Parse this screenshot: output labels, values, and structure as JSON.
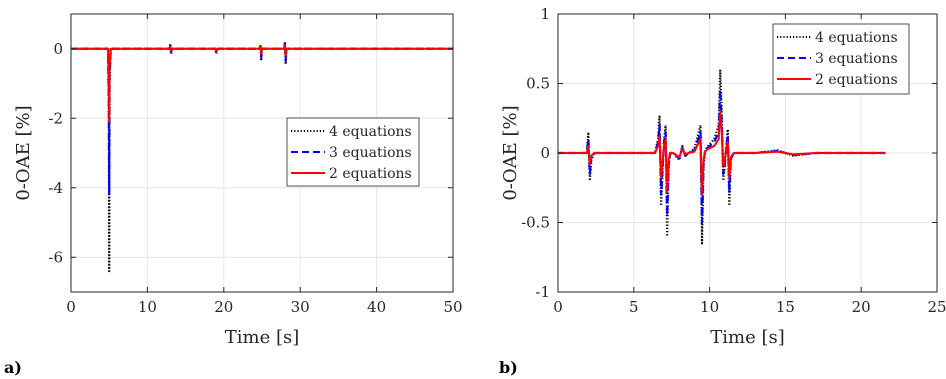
{
  "colors": {
    "series_4eq": "#000000",
    "series_3eq": "#0000ff",
    "series_2eq": "#ff0000",
    "grid": "#e6e6e6",
    "axis": "#262626"
  },
  "chart_data": [
    {
      "panel_label": "a)",
      "type": "line",
      "xlabel": "Time [s]",
      "ylabel": "0-OAE [%]",
      "xlim": [
        0,
        50
      ],
      "ylim": [
        -7,
        1
      ],
      "xticks": [
        0,
        10,
        20,
        30,
        40,
        50
      ],
      "yticks": [
        0,
        -2,
        -4,
        -6
      ],
      "ytick_labels": [
        "0",
        "-2",
        "-4",
        "-6"
      ],
      "grid": true,
      "legend_position": "center-right",
      "series": [
        {
          "name": "4 equations",
          "style": "dotted",
          "color": "#000000",
          "x": [
            0,
            4.85,
            4.95,
            5.0,
            5.05,
            5.2,
            12.9,
            13.0,
            13.1,
            13.2,
            18.9,
            19.0,
            19.2,
            24.7,
            24.8,
            24.9,
            25.0,
            27.9,
            28.0,
            28.1,
            28.2,
            35,
            50
          ],
          "y": [
            0,
            0,
            -2.0,
            -6.4,
            -1.0,
            0,
            0,
            0.15,
            -0.15,
            0,
            0,
            -0.15,
            0,
            0,
            0.1,
            -0.35,
            0,
            0,
            0.2,
            -0.45,
            0,
            0,
            0
          ]
        },
        {
          "name": "3 equations",
          "style": "dashed",
          "color": "#0000ff",
          "x": [
            0,
            4.85,
            4.95,
            5.0,
            5.05,
            5.2,
            12.9,
            13.0,
            13.1,
            13.2,
            18.9,
            19.0,
            19.2,
            24.7,
            24.8,
            24.9,
            25.0,
            27.9,
            28.0,
            28.1,
            28.2,
            35,
            50
          ],
          "y": [
            0,
            0,
            -1.5,
            -4.2,
            -0.8,
            0,
            0,
            0.1,
            -0.1,
            0,
            0,
            -0.1,
            0,
            0,
            0.08,
            -0.25,
            0,
            0,
            0.15,
            -0.35,
            0,
            0,
            0
          ]
        },
        {
          "name": "2 equations",
          "style": "solid",
          "color": "#ff0000",
          "x": [
            0,
            4.85,
            4.95,
            5.0,
            5.05,
            5.2,
            12.9,
            13.0,
            13.1,
            13.2,
            18.9,
            19.0,
            19.2,
            24.7,
            24.8,
            24.9,
            25.0,
            27.9,
            28.0,
            28.1,
            28.2,
            35,
            50
          ],
          "y": [
            0,
            0,
            -1.0,
            -2.1,
            -0.5,
            0,
            0,
            0.06,
            -0.06,
            0,
            0,
            -0.08,
            0,
            0,
            0.05,
            -0.15,
            0,
            0,
            0.1,
            -0.2,
            0,
            0,
            0
          ]
        }
      ]
    },
    {
      "panel_label": "b)",
      "type": "line",
      "xlabel": "Time [s]",
      "ylabel": "0-OAE [%]",
      "xlim": [
        0,
        25
      ],
      "ylim": [
        -1,
        1
      ],
      "xticks": [
        0,
        5,
        10,
        15,
        20,
        25
      ],
      "yticks": [
        1,
        0.5,
        0,
        -0.5,
        -1
      ],
      "ytick_labels": [
        "1",
        "0.5",
        "0",
        "-0.5",
        "-1"
      ],
      "grid": true,
      "legend_position": "top-right",
      "series": [
        {
          "name": "4 equations",
          "style": "dotted",
          "color": "#000000",
          "x": [
            0,
            1.9,
            2.0,
            2.1,
            2.2,
            2.4,
            6.4,
            6.6,
            6.7,
            6.8,
            7.0,
            7.1,
            7.2,
            7.3,
            7.4,
            7.6,
            8.0,
            8.2,
            8.4,
            8.6,
            9.0,
            9.4,
            9.5,
            9.6,
            9.7,
            9.9,
            10.3,
            10.6,
            10.7,
            10.8,
            10.9,
            11.0,
            11.1,
            11.2,
            11.3,
            11.4,
            11.6,
            12.0,
            13.0,
            14.5,
            15.5,
            17,
            18.5,
            20,
            21.6
          ],
          "y": [
            0,
            0,
            0.15,
            -0.2,
            -0.05,
            0,
            0,
            0.1,
            0.27,
            -0.38,
            0.1,
            0.2,
            -0.6,
            -0.1,
            0,
            0,
            -0.05,
            0.05,
            -0.02,
            0,
            0.03,
            0.2,
            -0.65,
            -0.1,
            0.02,
            0.05,
            0.1,
            0.2,
            0.6,
            0.3,
            -0.2,
            -0.1,
            0.05,
            0.17,
            -0.38,
            -0.05,
            0,
            0,
            0,
            0.02,
            -0.02,
            0,
            0,
            0,
            0
          ]
        },
        {
          "name": "3 equations",
          "style": "dashed",
          "color": "#0000ff",
          "x": [
            0,
            1.9,
            2.0,
            2.1,
            2.2,
            2.4,
            6.4,
            6.6,
            6.7,
            6.8,
            7.0,
            7.1,
            7.2,
            7.3,
            7.4,
            7.6,
            8.0,
            8.2,
            8.4,
            8.6,
            9.0,
            9.4,
            9.5,
            9.6,
            9.7,
            9.9,
            10.3,
            10.6,
            10.7,
            10.8,
            10.9,
            11.0,
            11.1,
            11.2,
            11.3,
            11.4,
            11.6,
            12.0,
            13.0,
            14.5,
            15.5,
            17,
            18.5,
            20,
            21.6
          ],
          "y": [
            0,
            0,
            0.1,
            -0.15,
            -0.03,
            0,
            0,
            0.08,
            0.2,
            -0.3,
            0.08,
            0.15,
            -0.45,
            -0.08,
            0,
            0,
            -0.04,
            0.04,
            -0.02,
            0,
            0.02,
            0.15,
            -0.5,
            -0.08,
            0.02,
            0.04,
            0.08,
            0.15,
            0.45,
            0.22,
            -0.15,
            -0.08,
            0.04,
            0.13,
            -0.28,
            -0.04,
            0,
            0,
            0,
            0.015,
            -0.015,
            0,
            0,
            0,
            0
          ]
        },
        {
          "name": "2 equations",
          "style": "solid",
          "color": "#ff0000",
          "x": [
            0,
            1.9,
            2.0,
            2.1,
            2.2,
            2.4,
            6.4,
            6.6,
            6.7,
            6.8,
            7.0,
            7.1,
            7.2,
            7.3,
            7.4,
            7.6,
            8.0,
            8.2,
            8.4,
            8.6,
            9.0,
            9.4,
            9.5,
            9.6,
            9.7,
            9.9,
            10.3,
            10.6,
            10.7,
            10.8,
            10.9,
            11.0,
            11.1,
            11.2,
            11.3,
            11.4,
            11.6,
            12.0,
            13.0,
            14.5,
            15.5,
            17,
            18.5,
            20,
            21.6
          ],
          "y": [
            0,
            0,
            0.05,
            -0.08,
            -0.02,
            0,
            0,
            0.05,
            0.12,
            -0.18,
            0.05,
            0.1,
            -0.28,
            -0.05,
            0,
            0,
            -0.03,
            0.03,
            -0.01,
            0,
            0.01,
            0.1,
            -0.3,
            -0.05,
            0.01,
            0.03,
            0.05,
            0.1,
            0.3,
            0.15,
            -0.1,
            -0.05,
            0.03,
            0.08,
            -0.18,
            -0.03,
            0,
            0,
            0,
            0.01,
            -0.01,
            0,
            0,
            0,
            0
          ]
        }
      ]
    }
  ]
}
